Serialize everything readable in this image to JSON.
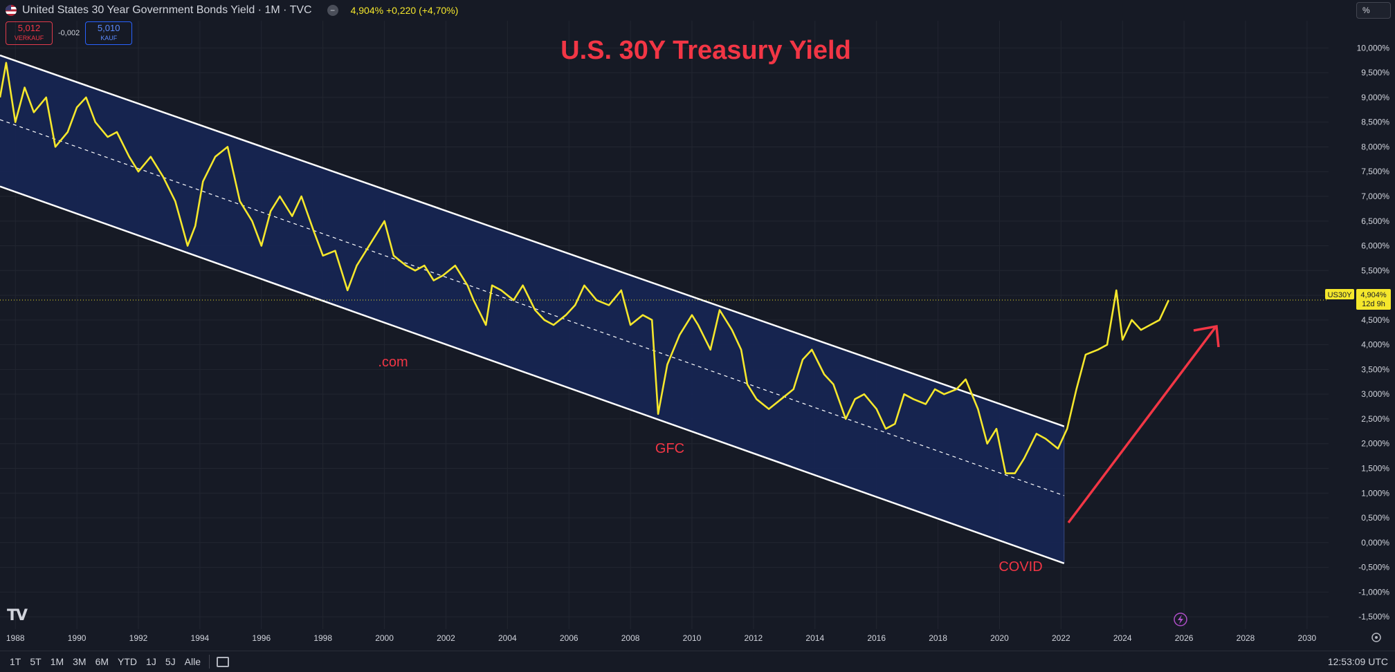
{
  "header": {
    "symbol_title": "United States 30 Year Government Bonds Yield · 1M · TVC",
    "price_text": "4,904% +0,220 (+4,70%)",
    "sell_price": "5,012",
    "sell_label": "VERKAUF",
    "spread": "-0,002",
    "buy_price": "5,010",
    "buy_label": "KAUF",
    "unit_button": "%"
  },
  "bottom_bar": {
    "ranges": [
      "1T",
      "5T",
      "1M",
      "3M",
      "6M",
      "YTD",
      "1J",
      "5J",
      "Alle"
    ],
    "clock": "12:53:09 UTC"
  },
  "colors": {
    "background": "#161a25",
    "line": "#f5e72c",
    "channel_fill": "#172552",
    "annotation": "#f23645",
    "channel_lines": "#ffffff"
  },
  "chart_data": {
    "type": "line",
    "title": "U.S. 30Y Treasury Yield",
    "series": [
      {
        "name": "US30Y",
        "x": [
          1987.5,
          1987.7,
          1988.0,
          1988.3,
          1988.6,
          1989.0,
          1989.3,
          1989.7,
          1990.0,
          1990.3,
          1990.6,
          1991.0,
          1991.3,
          1991.7,
          1992.0,
          1992.4,
          1992.8,
          1993.2,
          1993.6,
          1993.85,
          1994.1,
          1994.5,
          1994.9,
          1995.3,
          1995.7,
          1996.0,
          1996.3,
          1996.6,
          1997.0,
          1997.3,
          1997.7,
          1998.0,
          1998.4,
          1998.8,
          1999.1,
          1999.6,
          2000.0,
          2000.3,
          2000.7,
          2001.0,
          2001.3,
          2001.6,
          2001.9,
          2002.3,
          2002.7,
          2002.9,
          2003.3,
          2003.5,
          2003.8,
          2004.2,
          2004.5,
          2004.9,
          2005.2,
          2005.5,
          2005.9,
          2006.2,
          2006.5,
          2006.9,
          2007.3,
          2007.7,
          2008.0,
          2008.4,
          2008.7,
          2008.9,
          2009.2,
          2009.6,
          2010.0,
          2010.2,
          2010.6,
          2010.9,
          2011.3,
          2011.6,
          2011.8,
          2012.1,
          2012.5,
          2012.9,
          2013.3,
          2013.6,
          2013.9,
          2014.3,
          2014.6,
          2015.0,
          2015.3,
          2015.6,
          2016.0,
          2016.3,
          2016.6,
          2016.9,
          2017.2,
          2017.6,
          2017.9,
          2018.2,
          2018.6,
          2018.9,
          2019.3,
          2019.6,
          2019.9,
          2020.2,
          2020.5,
          2020.8,
          2021.2,
          2021.5,
          2021.9,
          2022.2,
          2022.5,
          2022.8,
          2023.2,
          2023.5,
          2023.8,
          2024.0,
          2024.3,
          2024.6,
          2024.9,
          2025.2,
          2025.5
        ],
        "values": [
          9.0,
          9.7,
          8.5,
          9.2,
          8.7,
          9.0,
          8.0,
          8.3,
          8.8,
          9.0,
          8.5,
          8.2,
          8.3,
          7.8,
          7.5,
          7.8,
          7.4,
          6.9,
          6.0,
          6.4,
          7.3,
          7.8,
          8.0,
          6.9,
          6.5,
          6.0,
          6.7,
          7.0,
          6.6,
          7.0,
          6.3,
          5.8,
          5.9,
          5.1,
          5.6,
          6.1,
          6.5,
          5.8,
          5.6,
          5.5,
          5.6,
          5.3,
          5.4,
          5.6,
          5.2,
          4.9,
          4.4,
          5.2,
          5.1,
          4.9,
          5.2,
          4.7,
          4.5,
          4.4,
          4.6,
          4.8,
          5.2,
          4.9,
          4.8,
          5.1,
          4.4,
          4.6,
          4.5,
          2.6,
          3.6,
          4.2,
          4.6,
          4.4,
          3.9,
          4.7,
          4.3,
          3.9,
          3.2,
          2.9,
          2.7,
          2.9,
          3.1,
          3.7,
          3.9,
          3.4,
          3.2,
          2.5,
          2.9,
          3.0,
          2.7,
          2.3,
          2.4,
          3.0,
          2.9,
          2.8,
          3.1,
          3.0,
          3.1,
          3.3,
          2.7,
          2.0,
          2.3,
          1.4,
          1.4,
          1.7,
          2.2,
          2.1,
          1.9,
          2.3,
          3.1,
          3.8,
          3.9,
          4.0,
          5.1,
          4.1,
          4.5,
          4.3,
          4.4,
          4.5,
          4.9
        ]
      }
    ],
    "x_ticks": [
      "1988",
      "1990",
      "1992",
      "1994",
      "1996",
      "1998",
      "2000",
      "2002",
      "2004",
      "2006",
      "2008",
      "2010",
      "2012",
      "2014",
      "2016",
      "2018",
      "2020",
      "2022",
      "2024",
      "2026",
      "2028",
      "2030"
    ],
    "y_ticks": [
      "10,000%",
      "9,500%",
      "9,000%",
      "8,500%",
      "8,000%",
      "7,500%",
      "7,000%",
      "6,500%",
      "6,000%",
      "5,500%",
      "5,000%",
      "4,500%",
      "4,000%",
      "3,500%",
      "3,000%",
      "2,500%",
      "2,000%",
      "1,500%",
      "1,000%",
      "0,500%",
      "0,000%",
      "-0,500%",
      "-1,000%",
      "-1,500%"
    ],
    "y_tick_values": [
      10,
      9.5,
      9,
      8.5,
      8,
      7.5,
      7,
      6.5,
      6,
      5.5,
      5,
      4.5,
      4,
      3.5,
      3,
      2.5,
      2,
      1.5,
      1,
      0.5,
      0,
      -0.5,
      -1,
      -1.5
    ],
    "xlim": [
      1987.5,
      2030.7
    ],
    "ylim": [
      -1.75,
      10.55
    ],
    "grid": true,
    "channel": {
      "upper": [
        [
          1987.5,
          9.85
        ],
        [
          2022.1,
          2.35
        ]
      ],
      "middle": [
        [
          1987.5,
          8.55
        ],
        [
          2022.1,
          0.95
        ]
      ],
      "lower": [
        [
          1987.5,
          7.2
        ],
        [
          2022.1,
          -0.42
        ]
      ]
    },
    "annotations": [
      ".com",
      "GFC",
      "COVID"
    ],
    "last_value_label": "US30Y",
    "last_value": "4,904%",
    "countdown": "12d 9h",
    "last_value_numeric": 4.904
  }
}
